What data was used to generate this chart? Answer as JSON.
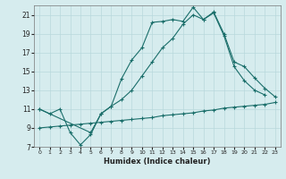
{
  "xlabel": "Humidex (Indice chaleur)",
  "bg_color": "#d6ecee",
  "line_color": "#1a6e6a",
  "grid_color": "#b8d8dc",
  "xlim": [
    -0.5,
    23.5
  ],
  "ylim": [
    7,
    22
  ],
  "yticks": [
    7,
    9,
    11,
    13,
    15,
    17,
    19,
    21
  ],
  "xticks": [
    0,
    1,
    2,
    3,
    4,
    5,
    6,
    7,
    8,
    9,
    10,
    11,
    12,
    13,
    14,
    15,
    16,
    17,
    18,
    19,
    20,
    21,
    22,
    23
  ],
  "line1_x": [
    0,
    1,
    2,
    3,
    4,
    5,
    6,
    7,
    8,
    9,
    10,
    11,
    12,
    13,
    14,
    15,
    16,
    17,
    18,
    19,
    20,
    21,
    22,
    23
  ],
  "line1_y": [
    11.0,
    10.5,
    11.0,
    8.5,
    7.2,
    8.3,
    10.5,
    11.3,
    14.2,
    16.2,
    17.5,
    20.2,
    20.3,
    20.5,
    20.3,
    21.8,
    20.5,
    21.2,
    18.8,
    15.5,
    14.0,
    13.0,
    12.5,
    null
  ],
  "line2_x": [
    0,
    5,
    6,
    7,
    8,
    9,
    10,
    11,
    12,
    13,
    14,
    15,
    16,
    17,
    18,
    19,
    20,
    21,
    22,
    23
  ],
  "line2_y": [
    11.0,
    8.5,
    10.5,
    11.3,
    12.0,
    13.0,
    14.5,
    16.0,
    17.5,
    18.5,
    20.0,
    21.0,
    20.5,
    21.3,
    19.0,
    16.0,
    15.5,
    14.3,
    13.2,
    12.3
  ],
  "line3_x": [
    0,
    1,
    2,
    3,
    4,
    5,
    6,
    7,
    8,
    9,
    10,
    11,
    12,
    13,
    14,
    15,
    16,
    17,
    18,
    19,
    20,
    21,
    22,
    23
  ],
  "line3_y": [
    9.0,
    9.1,
    9.2,
    9.3,
    9.4,
    9.5,
    9.6,
    9.7,
    9.8,
    9.9,
    10.0,
    10.1,
    10.3,
    10.4,
    10.5,
    10.6,
    10.8,
    10.9,
    11.1,
    11.2,
    11.3,
    11.4,
    11.5,
    11.7
  ]
}
